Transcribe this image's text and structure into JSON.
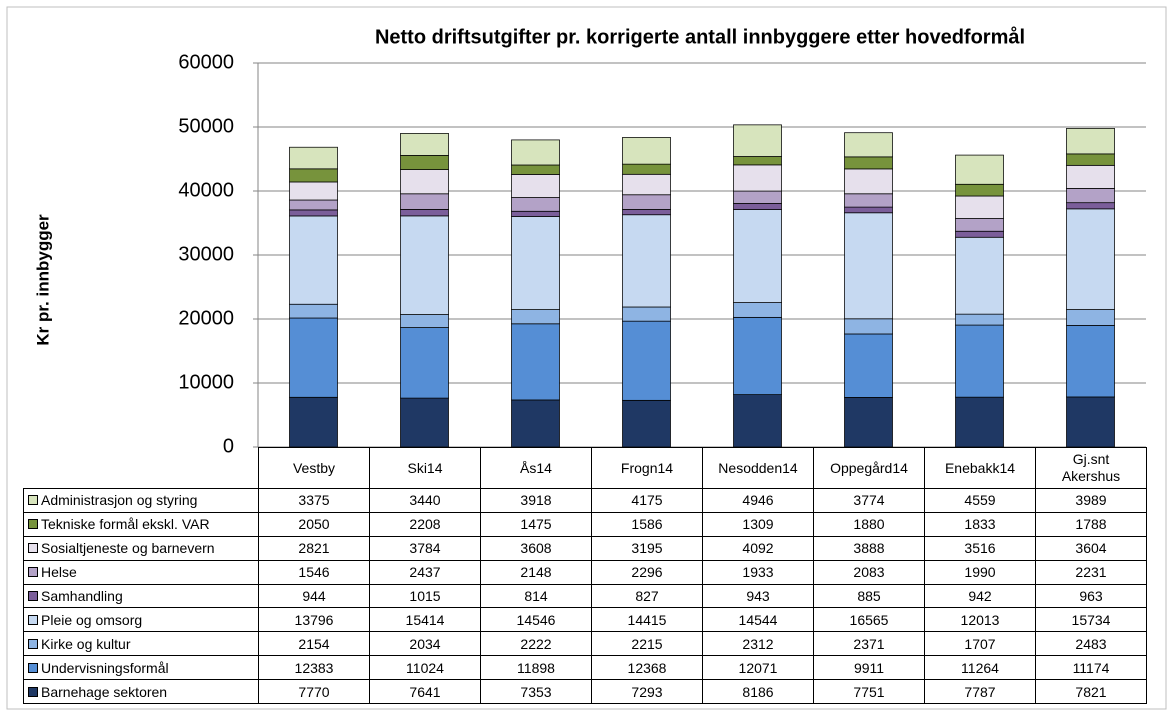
{
  "chart_data": {
    "type": "stacked_bar",
    "title": "Netto driftsutgifter pr. korrigerte antall innbyggere etter hovedformål",
    "y_label": "Kr pr. innbygger",
    "categories": [
      "Vestby",
      "Ski14",
      "Ås14",
      "Frogn14",
      "Nesodden14",
      "Oppegård14",
      "Enebakk14",
      "Gj.snt Akershus"
    ],
    "ylim": [
      0,
      60000
    ],
    "yticks": [
      0,
      10000,
      20000,
      30000,
      40000,
      50000,
      60000
    ],
    "grid": true,
    "series": [
      {
        "name": "Barnehage sektoren",
        "color": "#1f3864",
        "values": [
          7770,
          7641,
          7353,
          7293,
          8186,
          7751,
          7787,
          7821
        ]
      },
      {
        "name": "Undervisningsformål",
        "color": "#558ed5",
        "values": [
          12383,
          11024,
          11898,
          12368,
          12071,
          9911,
          11264,
          11174
        ]
      },
      {
        "name": "Kirke og kultur",
        "color": "#8eb4e3",
        "values": [
          2154,
          2034,
          2222,
          2215,
          2312,
          2371,
          1707,
          2483
        ]
      },
      {
        "name": "Pleie og omsorg",
        "color": "#c6d9f1",
        "values": [
          13796,
          15414,
          14546,
          14415,
          14544,
          16565,
          12013,
          15734
        ]
      },
      {
        "name": "Samhandling",
        "color": "#7b5e9a",
        "values": [
          944,
          1015,
          814,
          827,
          943,
          885,
          942,
          963
        ]
      },
      {
        "name": "Helse",
        "color": "#b3a2c7",
        "values": [
          1546,
          2437,
          2148,
          2296,
          1933,
          2083,
          1990,
          2231
        ]
      },
      {
        "name": "Sosialtjeneste og barnevern",
        "color": "#e6e0ec",
        "values": [
          2821,
          3784,
          3608,
          3195,
          4092,
          3888,
          3516,
          3604
        ]
      },
      {
        "name": "Tekniske formål ekskl. VAR",
        "color": "#77933c",
        "values": [
          2050,
          2208,
          1475,
          1586,
          1309,
          1880,
          1833,
          1788
        ]
      },
      {
        "name": "Administrasjon og styring",
        "color": "#d7e4bd",
        "values": [
          3375,
          3440,
          3918,
          4175,
          4946,
          3774,
          4559,
          3989
        ]
      }
    ]
  }
}
